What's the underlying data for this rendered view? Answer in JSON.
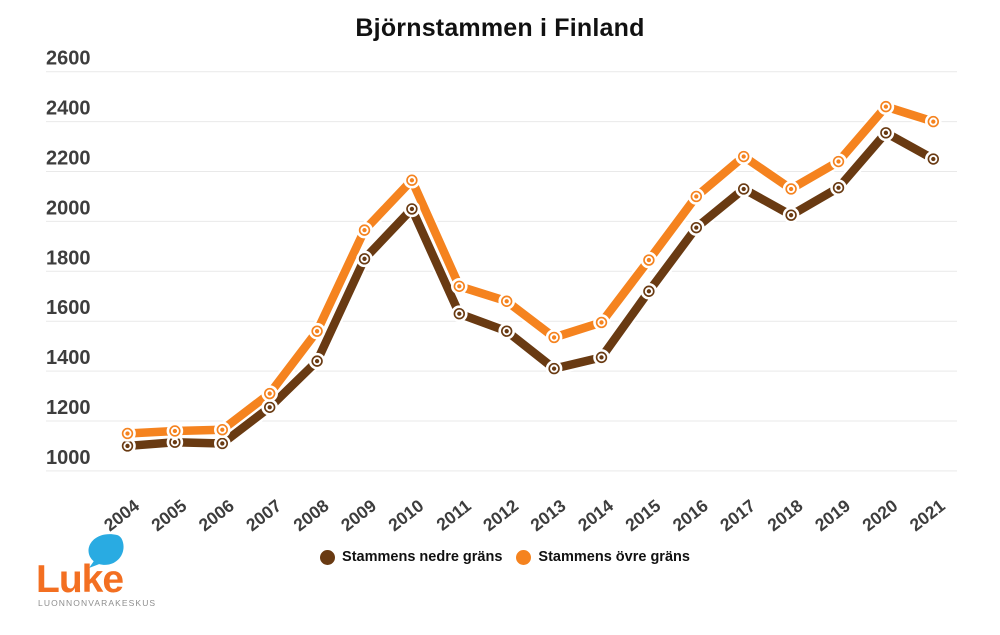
{
  "title": "Björnstammen i Finland",
  "chart_data": {
    "type": "line",
    "x": [
      2004,
      2005,
      2006,
      2007,
      2008,
      2009,
      2010,
      2011,
      2012,
      2013,
      2014,
      2015,
      2016,
      2017,
      2018,
      2019,
      2020,
      2021
    ],
    "series": [
      {
        "name": "Stammens nedre gräns",
        "color": "#693A12",
        "values": [
          1100,
          1115,
          1110,
          1255,
          1440,
          1850,
          2050,
          1630,
          1560,
          1410,
          1455,
          1720,
          1975,
          2130,
          2025,
          2135,
          2355,
          2250
        ]
      },
      {
        "name": "Stammens övre gräns",
        "color": "#F5831F",
        "values": [
          1150,
          1160,
          1165,
          1310,
          1560,
          1965,
          2165,
          1740,
          1680,
          1535,
          1595,
          1845,
          2100,
          2260,
          2130,
          2240,
          2460,
          2400
        ]
      }
    ],
    "title": "Björnstammen i Finland",
    "xlabel": "",
    "ylabel": "",
    "ylim": [
      1000,
      2600
    ],
    "ytick_step": 200,
    "yticks": [
      1000,
      1200,
      1400,
      1600,
      1800,
      2000,
      2200,
      2400,
      2600
    ],
    "grid": true,
    "gridline_color": "#E9E9E9",
    "legend_position": "bottom-center",
    "marker": "ring-dot",
    "line_casing_color": "#FFFFFF"
  },
  "logo": {
    "text": "Luke",
    "tagline": "LUONNONVARAKESKUS",
    "text_color": "#F36F21",
    "leaf_color": "#29ABE2",
    "tagline_color": "#8E8E8E",
    "leaf_icon": "leaf"
  }
}
